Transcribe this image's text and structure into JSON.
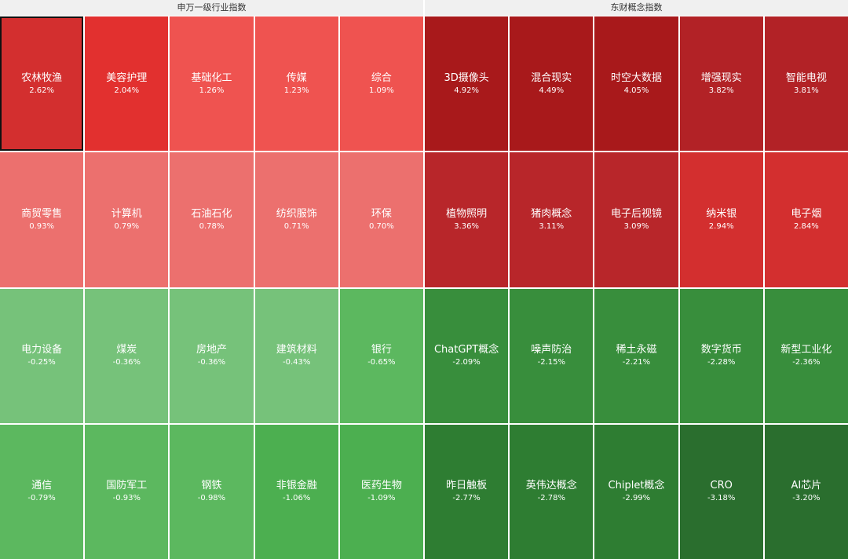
{
  "panels": [
    {
      "title": "申万一级行业指数",
      "tiles": [
        {
          "name": "农林牧渔",
          "change": "2.62%",
          "color": "#d32f2f",
          "selected": true
        },
        {
          "name": "美容护理",
          "change": "2.04%",
          "color": "#e2302f"
        },
        {
          "name": "基础化工",
          "change": "1.26%",
          "color": "#ef5350"
        },
        {
          "name": "传媒",
          "change": "1.23%",
          "color": "#ef5350"
        },
        {
          "name": "综合",
          "change": "1.09%",
          "color": "#ef5350"
        },
        {
          "name": "商贸零售",
          "change": "0.93%",
          "color": "#ec706e"
        },
        {
          "name": "计算机",
          "change": "0.79%",
          "color": "#ec706e"
        },
        {
          "name": "石油石化",
          "change": "0.78%",
          "color": "#ec706e"
        },
        {
          "name": "纺织服饰",
          "change": "0.71%",
          "color": "#ec706e"
        },
        {
          "name": "环保",
          "change": "0.70%",
          "color": "#ec706e"
        },
        {
          "name": "电力设备",
          "change": "-0.25%",
          "color": "#76c27a"
        },
        {
          "name": "煤炭",
          "change": "-0.36%",
          "color": "#76c27a"
        },
        {
          "name": "房地产",
          "change": "-0.36%",
          "color": "#76c27a"
        },
        {
          "name": "建筑材料",
          "change": "-0.43%",
          "color": "#76c27a"
        },
        {
          "name": "银行",
          "change": "-0.65%",
          "color": "#5cb85f"
        },
        {
          "name": "通信",
          "change": "-0.79%",
          "color": "#5cb85f"
        },
        {
          "name": "国防军工",
          "change": "-0.93%",
          "color": "#5cb85f"
        },
        {
          "name": "钢铁",
          "change": "-0.98%",
          "color": "#5cb85f"
        },
        {
          "name": "非银金融",
          "change": "-1.06%",
          "color": "#4caf50"
        },
        {
          "name": "医药生物",
          "change": "-1.09%",
          "color": "#4caf50"
        }
      ]
    },
    {
      "title": "东财概念指数",
      "tiles": [
        {
          "name": "3D摄像头",
          "change": "4.92%",
          "color": "#a8191b"
        },
        {
          "name": "混合现实",
          "change": "4.49%",
          "color": "#a8191b"
        },
        {
          "name": "时空大数据",
          "change": "4.05%",
          "color": "#a8191b"
        },
        {
          "name": "增强现实",
          "change": "3.82%",
          "color": "#b22226"
        },
        {
          "name": "智能电视",
          "change": "3.81%",
          "color": "#b22226"
        },
        {
          "name": "植物照明",
          "change": "3.36%",
          "color": "#b8262a"
        },
        {
          "name": "猪肉概念",
          "change": "3.11%",
          "color": "#b8262a"
        },
        {
          "name": "电子后视镜",
          "change": "3.09%",
          "color": "#b8262a"
        },
        {
          "name": "纳米银",
          "change": "2.94%",
          "color": "#d32f2f"
        },
        {
          "name": "电子烟",
          "change": "2.84%",
          "color": "#d32f2f"
        },
        {
          "name": "ChatGPT概念",
          "change": "-2.09%",
          "color": "#388e3c"
        },
        {
          "name": "噪声防治",
          "change": "-2.15%",
          "color": "#388e3c"
        },
        {
          "name": "稀土永磁",
          "change": "-2.21%",
          "color": "#388e3c"
        },
        {
          "name": "数字货币",
          "change": "-2.28%",
          "color": "#388e3c"
        },
        {
          "name": "新型工业化",
          "change": "-2.36%",
          "color": "#388e3c"
        },
        {
          "name": "昨日触板",
          "change": "-2.77%",
          "color": "#2e7d32"
        },
        {
          "name": "英伟达概念",
          "change": "-2.78%",
          "color": "#2e7d32"
        },
        {
          "name": "Chiplet概念",
          "change": "-2.99%",
          "color": "#2e7d32"
        },
        {
          "name": "CRO",
          "change": "-3.18%",
          "color": "#2a6e2e"
        },
        {
          "name": "AI芯片",
          "change": "-3.20%",
          "color": "#2a6e2e"
        }
      ]
    }
  ]
}
